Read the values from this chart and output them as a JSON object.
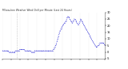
{
  "title": "Milwaukee Weather Wind Chill per Minute (Last 24 Hours)",
  "bg_color": "#ffffff",
  "line_color": "#0000cc",
  "y_min": -5,
  "y_max": 30,
  "y_ticks": [
    -5,
    0,
    5,
    10,
    15,
    20,
    25,
    30
  ],
  "vline_x": 20,
  "x_data": [
    0,
    1,
    2,
    3,
    4,
    5,
    6,
    7,
    8,
    9,
    10,
    11,
    12,
    13,
    14,
    15,
    16,
    17,
    18,
    19,
    20,
    21,
    22,
    23,
    24,
    25,
    26,
    27,
    28,
    29,
    30,
    31,
    32,
    33,
    34,
    35,
    36,
    37,
    38,
    39,
    40,
    41,
    42,
    43,
    44,
    45,
    46,
    47,
    48,
    49,
    50,
    51,
    52,
    53,
    54,
    55,
    56,
    57,
    58,
    59,
    60,
    61,
    62,
    63,
    64,
    65,
    66,
    67,
    68,
    69,
    70,
    71,
    72,
    73,
    74,
    75,
    76,
    77,
    78,
    79,
    80,
    81,
    82,
    83,
    84,
    85,
    86,
    87,
    88,
    89,
    90,
    91,
    92,
    93,
    94,
    95,
    96,
    97,
    98,
    99,
    100,
    101,
    102,
    103,
    104,
    105,
    106,
    107,
    108,
    109,
    110,
    111,
    112,
    113,
    114,
    115,
    116,
    117,
    118,
    119,
    120,
    121,
    122,
    123,
    124,
    125,
    126,
    127,
    128,
    129,
    130,
    131,
    132,
    133,
    134,
    135,
    136,
    137,
    138,
    139,
    140,
    141,
    142,
    143
  ],
  "y_data": [
    1,
    1,
    1,
    1,
    1,
    1,
    1,
    1,
    1,
    0,
    0,
    0,
    0,
    0,
    0,
    0,
    0,
    0,
    1,
    1,
    1,
    1,
    1,
    1,
    2,
    2,
    2,
    2,
    2,
    2,
    2,
    1,
    1,
    1,
    1,
    1,
    1,
    1,
    1,
    1,
    0,
    0,
    0,
    0,
    0,
    1,
    1,
    1,
    1,
    1,
    1,
    1,
    1,
    1,
    1,
    1,
    1,
    1,
    1,
    1,
    1,
    1,
    1,
    1,
    1,
    1,
    1,
    1,
    1,
    1,
    1,
    2,
    3,
    4,
    5,
    6,
    8,
    10,
    12,
    14,
    16,
    17,
    18,
    19,
    20,
    21,
    22,
    22,
    23,
    24,
    26,
    27,
    27,
    26,
    25,
    24,
    23,
    22,
    23,
    24,
    25,
    25,
    24,
    23,
    22,
    21,
    21,
    22,
    23,
    25,
    24,
    23,
    22,
    21,
    20,
    19,
    18,
    17,
    16,
    15,
    14,
    13,
    12,
    11,
    10,
    9,
    8,
    7,
    6,
    5,
    4,
    4,
    4,
    5,
    5,
    6,
    7,
    7,
    7,
    7,
    7,
    7,
    6,
    5
  ],
  "x_tick_positions": [
    0,
    12,
    24,
    36,
    48,
    60,
    72,
    84,
    96,
    108,
    120,
    132,
    143
  ],
  "figsize": [
    1.6,
    0.87
  ],
  "dpi": 100
}
